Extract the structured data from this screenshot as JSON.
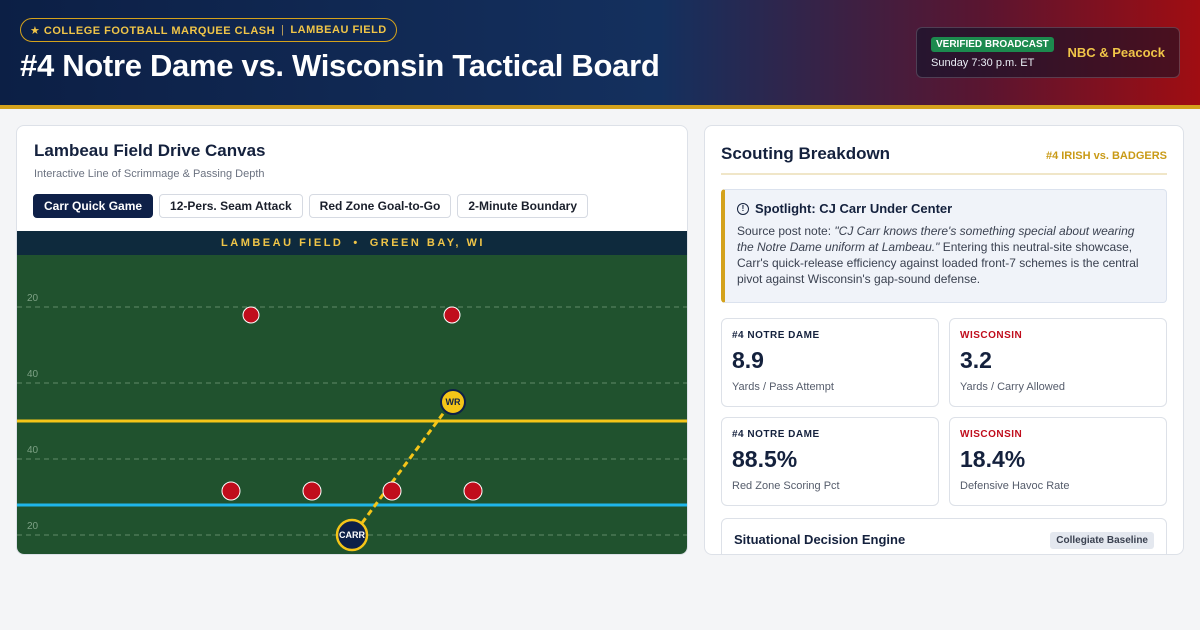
{
  "header": {
    "tag_left": "★ COLLEGE FOOTBALL MARQUEE CLASH",
    "tag_separator": "|",
    "tag_right": "LAMBEAU FIELD",
    "title": "#4 Notre Dame vs. Wisconsin Tactical Board",
    "broadcast": {
      "badge": "VERIFIED BROADCAST",
      "time": "Sunday 7:30 p.m. ET",
      "network": "NBC & Peacock"
    }
  },
  "canvas": {
    "title": "Lambeau Field Drive Canvas",
    "subtitle": "Interactive Line of Scrimmage & Passing Depth",
    "tabs": [
      {
        "label": "Carr Quick Game",
        "active": true
      },
      {
        "label": "12-Pers. Seam Attack",
        "active": false
      },
      {
        "label": "Red Zone Goal-to-Go",
        "active": false
      },
      {
        "label": "2-Minute Boundary",
        "active": false
      }
    ],
    "banner_left": "LAMBEAU FIELD",
    "banner_dot": "•",
    "banner_right": "GREEN BAY, WI",
    "yard_labels": [
      "20",
      "40",
      "40",
      "20"
    ],
    "receiver_label": "WR",
    "qb_label": "CARR",
    "colors": {
      "turf": "#20522e",
      "first_down_line": "#f5c518",
      "scrimmage_line": "#1fb6ea",
      "defender": "#c00d1c",
      "receiver": "#f5c518",
      "qb": "#0e2048"
    }
  },
  "scouting": {
    "title": "Scouting Breakdown",
    "matchup": "#4 IRISH vs. BADGERS",
    "spotlight": {
      "title": "Spotlight: CJ Carr Under Center",
      "lead": "Source post note: ",
      "quote": "\"CJ Carr knows there's something special about wearing the Notre Dame uniform at Lambeau.\"",
      "body": " Entering this neutral-site showcase, Carr's quick-release efficiency against loaded front-7 schemes is the central pivot against Wisconsin's gap-sound defense."
    },
    "stats": [
      {
        "team": "#4 NOTRE DAME",
        "value": "8.9",
        "label": "Yards / Pass Attempt"
      },
      {
        "team": "WISCONSIN",
        "value": "3.2",
        "label": "Yards / Carry Allowed"
      },
      {
        "team": "#4 NOTRE DAME",
        "value": "88.5%",
        "label": "Red Zone Scoring Pct"
      },
      {
        "team": "WISCONSIN",
        "value": "18.4%",
        "label": "Defensive Havoc Rate"
      }
    ],
    "engine": {
      "title": "Situational Decision Engine",
      "badge": "Collegiate Baseline"
    }
  }
}
